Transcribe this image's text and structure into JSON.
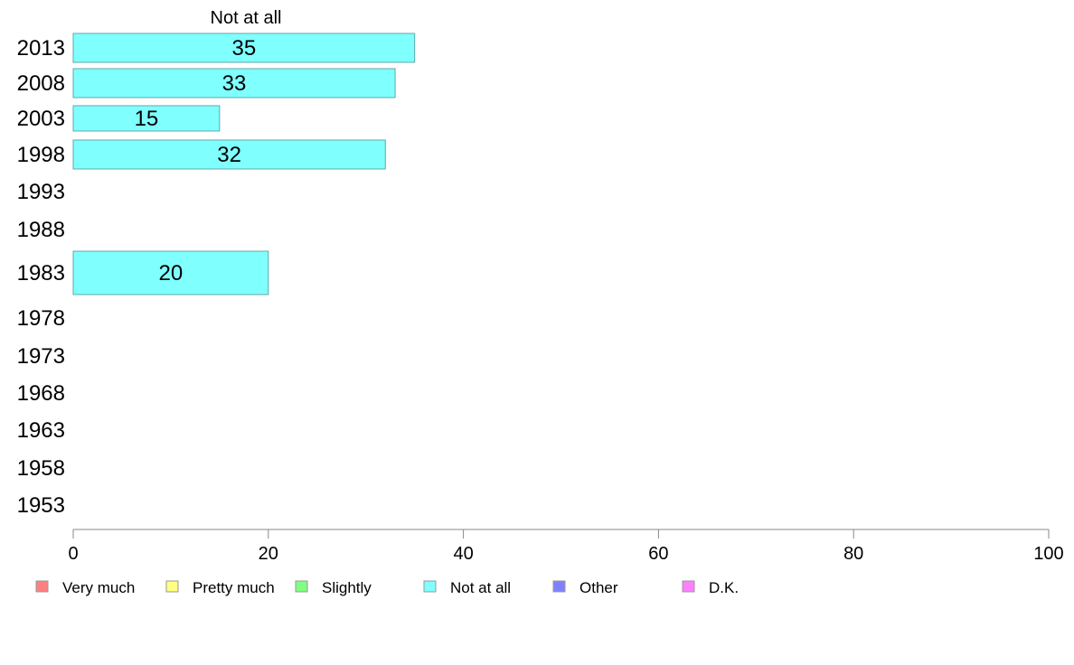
{
  "chart_data": {
    "type": "bar",
    "orientation": "horizontal",
    "title": "Not at all",
    "categories": [
      "2013",
      "2008",
      "2003",
      "1998",
      "1993",
      "1988",
      "1983",
      "1978",
      "1973",
      "1968",
      "1963",
      "1958",
      "1953"
    ],
    "series": [
      {
        "name": "Not at all",
        "color": "#80ffff",
        "values": [
          35,
          33,
          15,
          32,
          null,
          null,
          20,
          null,
          null,
          null,
          null,
          null,
          null
        ]
      }
    ],
    "xlim": [
      0,
      100
    ],
    "xticks": [
      "0",
      "20",
      "40",
      "60",
      "80",
      "100"
    ],
    "grid": false,
    "legend_position": "bottom",
    "legend": [
      {
        "label": "Very much",
        "color": "#ff8080"
      },
      {
        "label": "Pretty much",
        "color": "#ffff80"
      },
      {
        "label": "Slightly",
        "color": "#80ff80"
      },
      {
        "label": "Not at all",
        "color": "#80ffff"
      },
      {
        "label": "Other",
        "color": "#8080ff"
      },
      {
        "label": "D.K.",
        "color": "#ff80ff"
      }
    ]
  }
}
